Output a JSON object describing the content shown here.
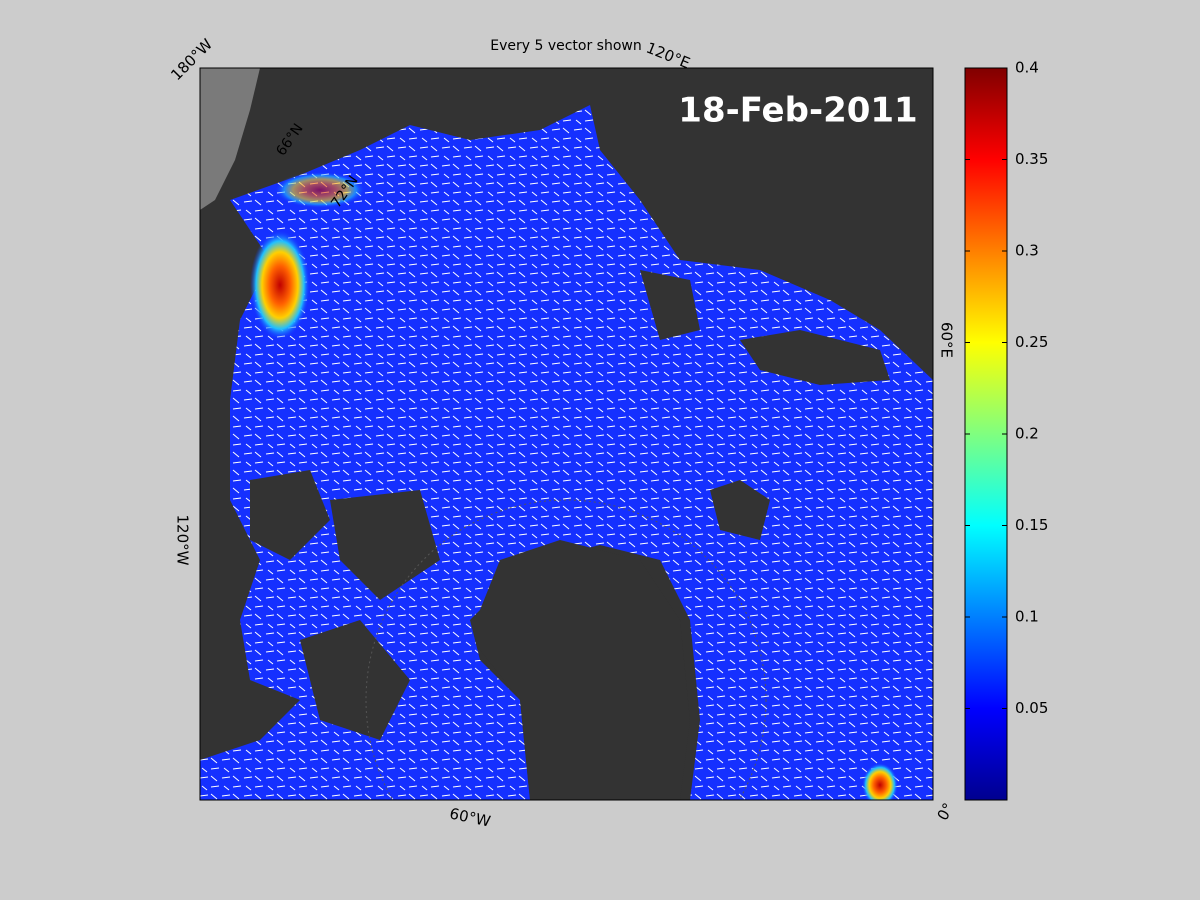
{
  "map": {
    "title": "Every 5 vector shown",
    "date": "18-Feb-2011",
    "lon_labels": [
      "180°W",
      "120°E",
      "60°E",
      "0°",
      "60°W",
      "120°W"
    ],
    "lat_labels": [
      "66°N",
      "72°N"
    ],
    "colorbar": {
      "clim": [
        0,
        0.4
      ],
      "ticks": [
        0.05,
        0.1,
        0.15,
        0.2,
        0.25,
        0.3,
        0.35,
        0.4
      ]
    }
  }
}
